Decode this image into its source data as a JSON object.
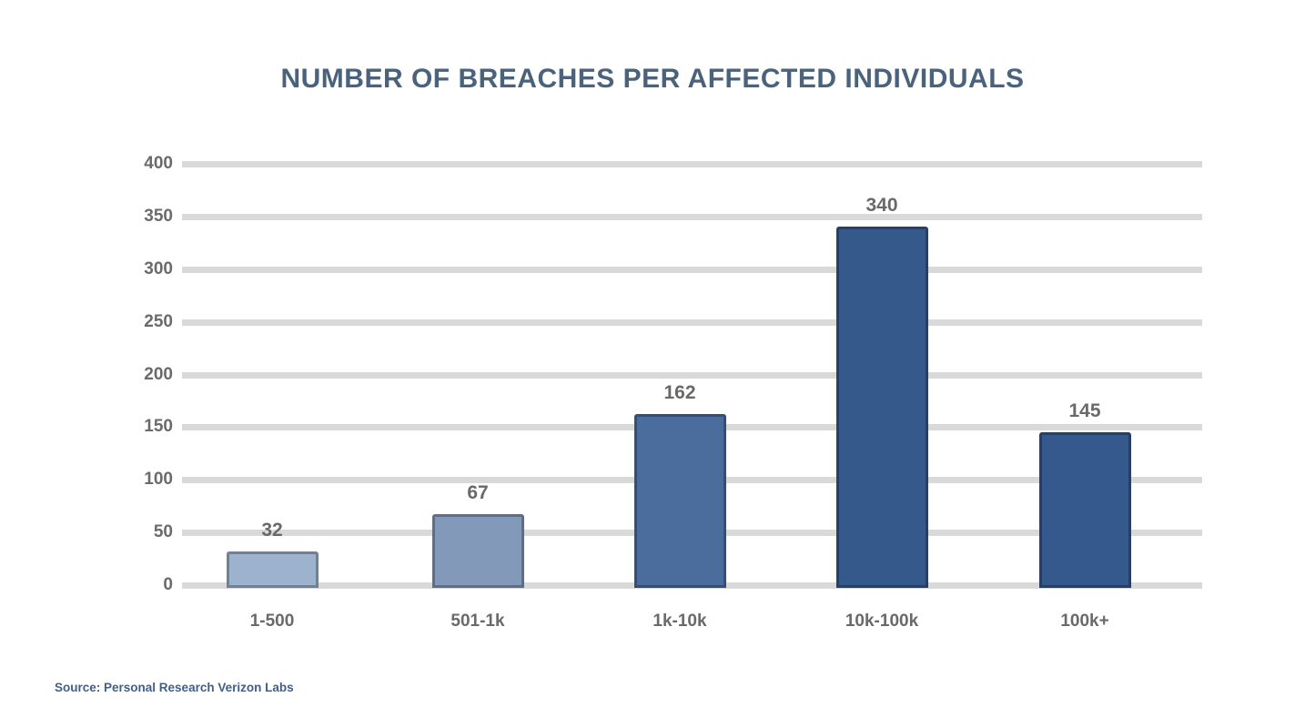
{
  "page": {
    "background_color": "#ffffff"
  },
  "chart_data": {
    "type": "bar",
    "title": "NUMBER OF BREACHES PER AFFECTED INDIVIDUALS",
    "categories": [
      "1-500",
      "501-1k",
      "1k-10k",
      "10k-100k",
      "100k+"
    ],
    "values": [
      32,
      67,
      162,
      340,
      145
    ],
    "yticks": [
      0,
      50,
      100,
      150,
      200,
      250,
      300,
      350,
      400
    ],
    "ylim": [
      0,
      400
    ],
    "xlabel": "",
    "ylabel": "",
    "grid": "horizontal",
    "legend": "none",
    "bar_colors": [
      "#9db2cc",
      "#8399b9",
      "#4a6d9d",
      "#36598c",
      "#35598c"
    ],
    "title_color": "#4a627c",
    "axis_label_color": "#6a6a6a",
    "data_label_color": "#696969",
    "gridline_color": "#d9d9d9"
  },
  "footer": {
    "source_text": "Source: Personal Research Verizon Labs"
  }
}
